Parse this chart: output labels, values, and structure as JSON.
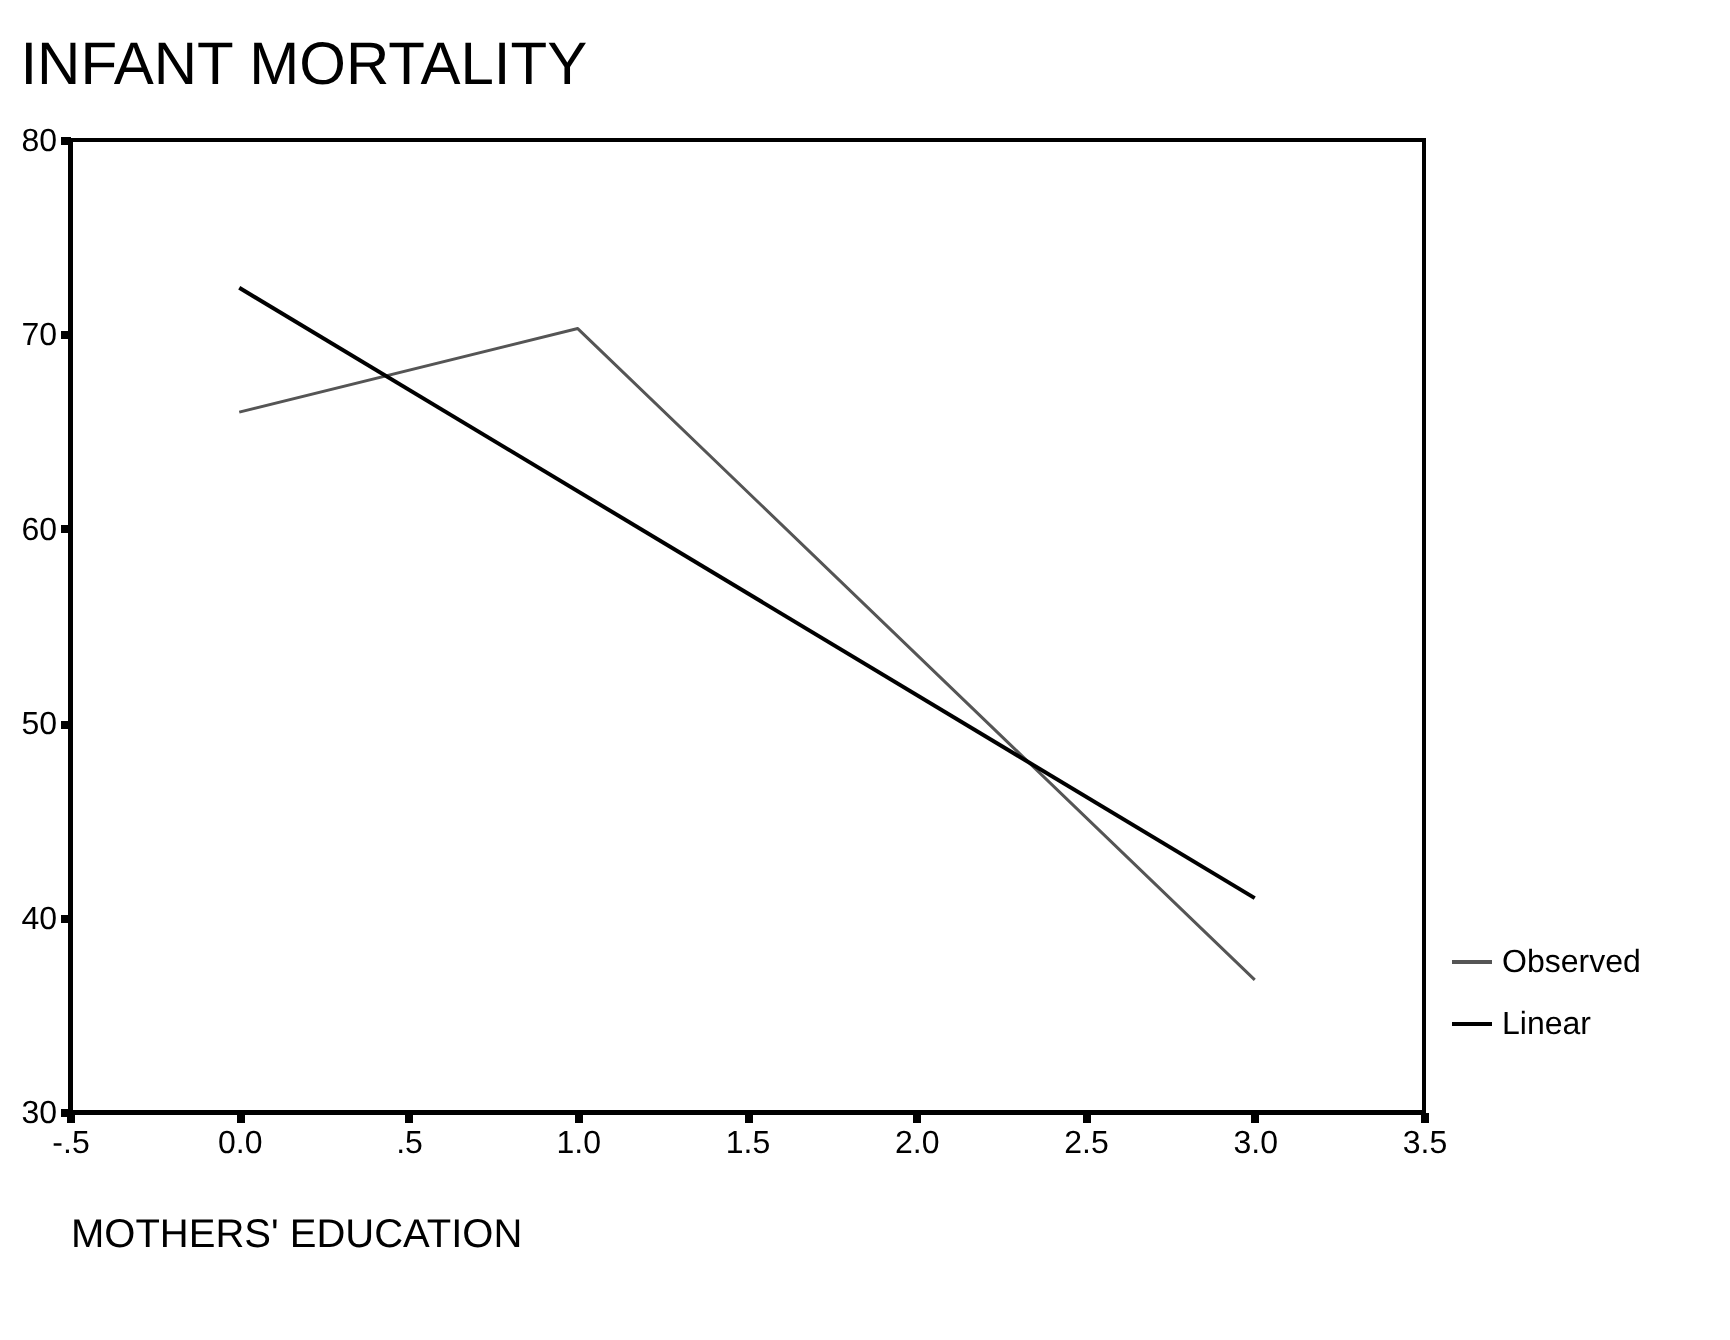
{
  "chart_data": {
    "type": "line",
    "title": "INFANT MORTALITY",
    "xlabel": "MOTHERS' EDUCATION",
    "xlim": [
      -0.5,
      3.5
    ],
    "xticks": [
      {
        "value": -0.5,
        "label": "-.5"
      },
      {
        "value": 0,
        "label": "0.0"
      },
      {
        "value": 0.5,
        "label": ".5"
      },
      {
        "value": 1,
        "label": "1.0"
      },
      {
        "value": 1.5,
        "label": "1.5"
      },
      {
        "value": 2,
        "label": "2.0"
      },
      {
        "value": 2.5,
        "label": "2.5"
      },
      {
        "value": 3,
        "label": "3.0"
      },
      {
        "value": 3.5,
        "label": "3.5"
      }
    ],
    "ylim": [
      30,
      80
    ],
    "yticks": [
      30,
      40,
      50,
      60,
      70,
      80
    ],
    "series": [
      {
        "name": "Observed",
        "color": "#555555",
        "x": [
          0,
          1,
          3
        ],
        "values": [
          66,
          70.3,
          36.8
        ]
      },
      {
        "name": "Linear",
        "color": "#000000",
        "x": [
          0,
          3
        ],
        "values": [
          72.4,
          41.0
        ]
      }
    ],
    "legend": "bottom right",
    "grid": false
  }
}
